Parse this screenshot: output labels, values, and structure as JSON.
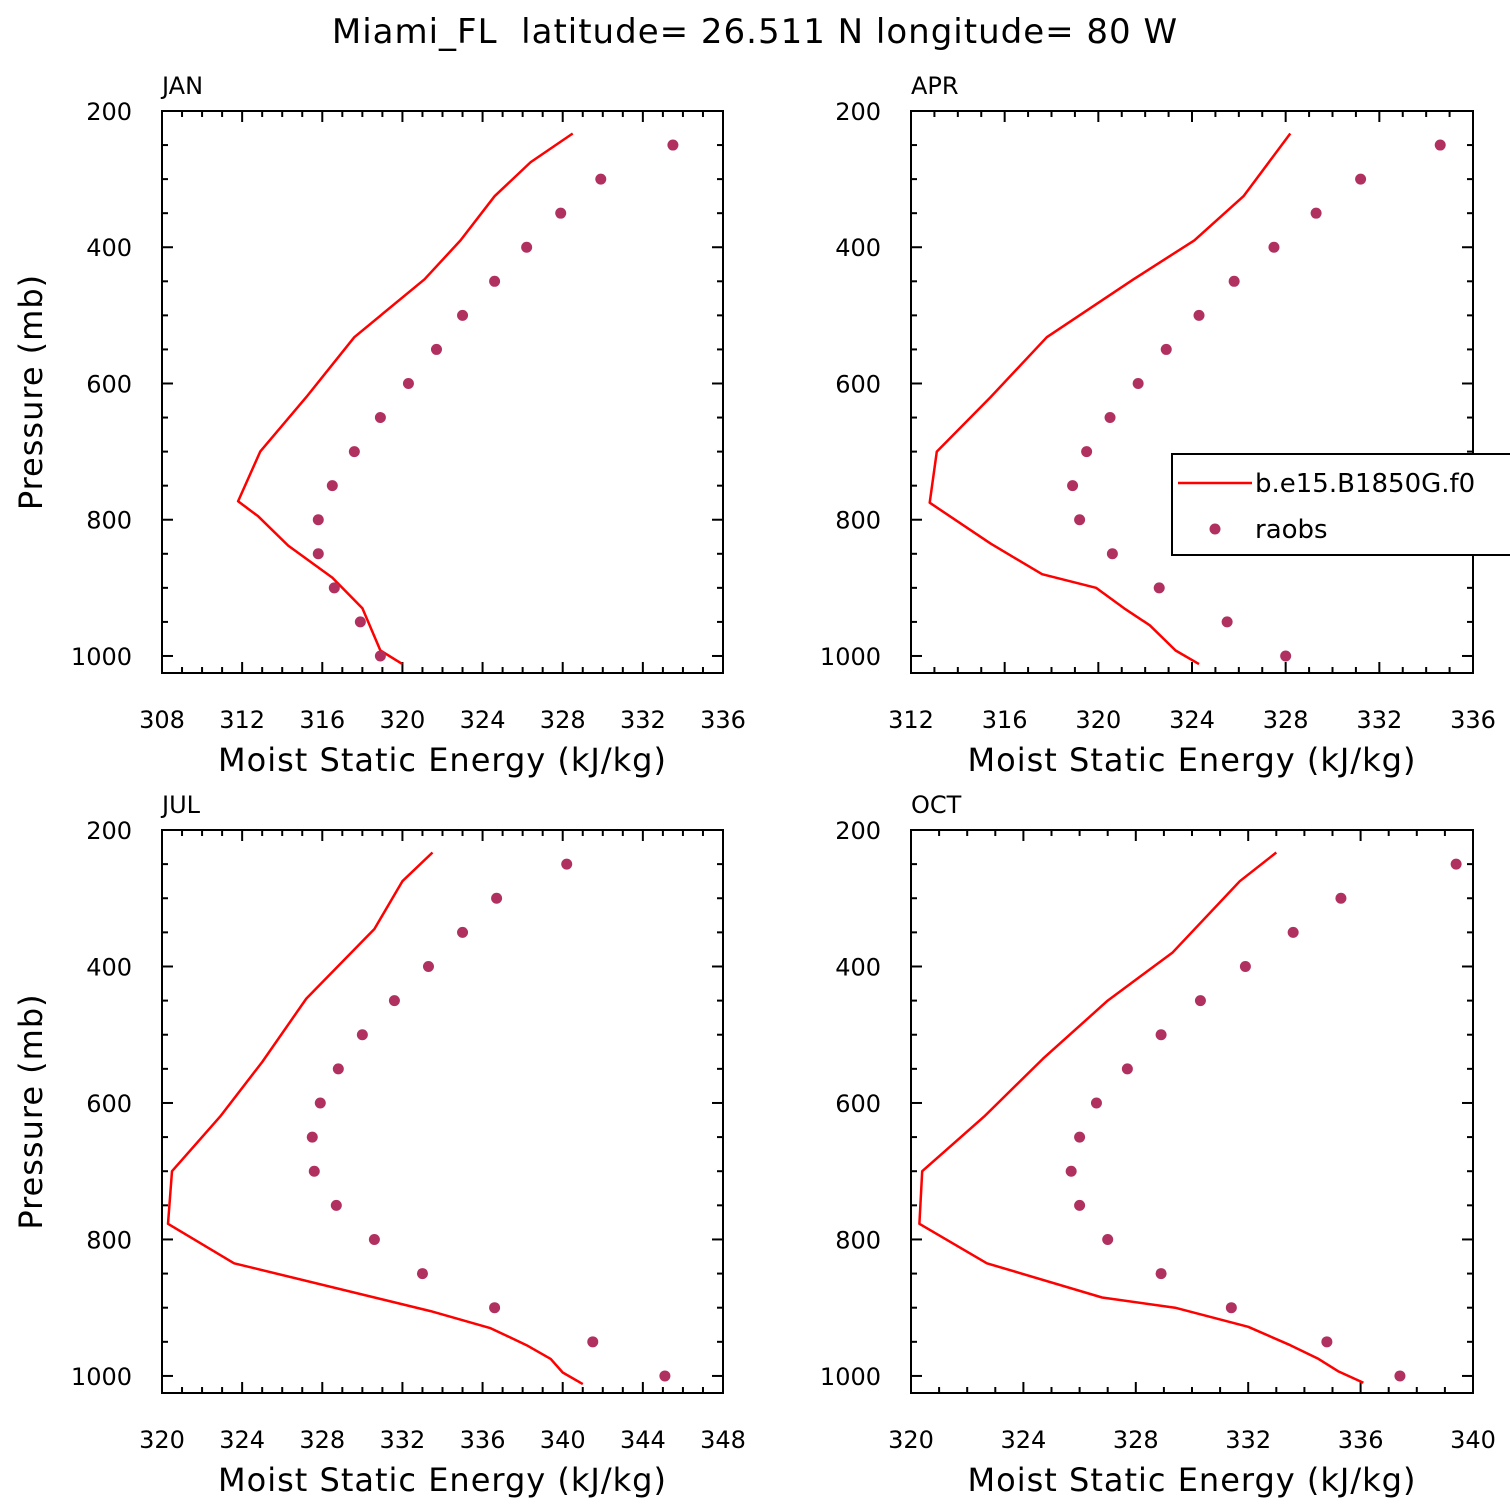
{
  "title": "Miami_FL  latitude= 26.511 N longitude= 80 W",
  "colors": {
    "model": "#ff0000",
    "raobs": "#b03060"
  },
  "legend": {
    "model_label": "b.e15.B1850G.f0",
    "raobs_label": "raobs",
    "panel": 1,
    "placement": "right"
  },
  "chart_data": [
    {
      "type": "line",
      "month_label": "JAN",
      "xlabel": "Moist Static Energy (kJ/kg)",
      "ylabel": "Pressure (mb)",
      "xlim": [
        308,
        336
      ],
      "xticks": [
        "308",
        "312",
        "316",
        "320",
        "324",
        "328",
        "332",
        "336"
      ],
      "ylim": [
        1025,
        200
      ],
      "yticks": [
        "200",
        "400",
        "600",
        "800",
        "1000"
      ],
      "model": {
        "x": [
          320.0,
          318.9,
          318.0,
          316.5,
          314.3,
          312.8,
          311.8,
          312.9,
          315.2,
          317.6,
          321.1,
          322.9,
          324.6,
          326.4,
          328.5
        ],
        "y": [
          1012,
          992,
          930,
          885,
          838,
          795,
          773,
          700,
          620,
          532,
          447,
          390,
          325,
          275,
          233
        ]
      },
      "raobs": {
        "x": [
          318.9,
          317.9,
          316.6,
          315.8,
          315.8,
          316.5,
          317.6,
          318.9,
          320.3,
          321.7,
          323.0,
          324.6,
          326.2,
          327.9,
          329.9,
          333.5
        ],
        "y": [
          1000,
          950,
          900,
          850,
          800,
          750,
          700,
          650,
          600,
          550,
          500,
          450,
          400,
          350,
          300,
          250
        ]
      }
    },
    {
      "type": "line",
      "month_label": "APR",
      "xlabel": "Moist Static Energy (kJ/kg)",
      "ylabel": "",
      "xlim": [
        312,
        336
      ],
      "xticks": [
        "312",
        "316",
        "320",
        "324",
        "328",
        "332",
        "336"
      ],
      "ylim": [
        1025,
        200
      ],
      "yticks": [
        "200",
        "400",
        "600",
        "800",
        "1000"
      ],
      "model": {
        "x": [
          324.3,
          323.3,
          322.2,
          321.1,
          319.9,
          317.6,
          315.4,
          312.8,
          313.1,
          315.4,
          317.8,
          321.5,
          324.1,
          326.2,
          328.2
        ],
        "y": [
          1012,
          992,
          955,
          930,
          900,
          880,
          835,
          775,
          700,
          620,
          532,
          447,
          390,
          325,
          233
        ]
      },
      "raobs": {
        "x": [
          328.0,
          325.5,
          322.6,
          320.6,
          319.2,
          318.9,
          319.5,
          320.5,
          321.7,
          322.9,
          324.3,
          325.8,
          327.5,
          329.3,
          331.2,
          334.6
        ],
        "y": [
          1000,
          950,
          900,
          850,
          800,
          750,
          700,
          650,
          600,
          550,
          500,
          450,
          400,
          350,
          300,
          250
        ]
      }
    },
    {
      "type": "line",
      "month_label": "JUL",
      "xlabel": "Moist Static Energy (kJ/kg)",
      "ylabel": "Pressure (mb)",
      "xlim": [
        320,
        348
      ],
      "xticks": [
        "320",
        "324",
        "328",
        "332",
        "336",
        "340",
        "344",
        "348"
      ],
      "ylim": [
        1025,
        200
      ],
      "yticks": [
        "200",
        "400",
        "600",
        "800",
        "1000"
      ],
      "model": {
        "x": [
          341.0,
          340.0,
          339.4,
          338.2,
          336.4,
          333.4,
          323.6,
          320.3,
          320.5,
          322.9,
          325.0,
          327.2,
          330.6,
          332.0,
          333.5
        ],
        "y": [
          1012,
          995,
          975,
          955,
          930,
          905,
          835,
          777,
          700,
          620,
          540,
          447,
          345,
          275,
          233
        ]
      },
      "raobs": {
        "x": [
          345.1,
          341.5,
          336.6,
          333.0,
          330.6,
          328.7,
          327.6,
          327.5,
          327.9,
          328.8,
          330.0,
          331.6,
          333.3,
          335.0,
          336.7,
          340.2
        ],
        "y": [
          1000,
          950,
          900,
          850,
          800,
          750,
          700,
          650,
          600,
          550,
          500,
          450,
          400,
          350,
          300,
          250
        ]
      }
    },
    {
      "type": "line",
      "month_label": "OCT",
      "xlabel": "Moist Static Energy (kJ/kg)",
      "ylabel": "",
      "xlim": [
        320,
        340
      ],
      "xticks": [
        "320",
        "324",
        "328",
        "332",
        "336",
        "340"
      ],
      "ylim": [
        1025,
        200
      ],
      "yticks": [
        "200",
        "400",
        "600",
        "800",
        "1000"
      ],
      "model": {
        "x": [
          336.1,
          335.2,
          334.5,
          333.5,
          332.0,
          329.4,
          326.8,
          322.7,
          320.3,
          320.4,
          322.6,
          324.7,
          327.0,
          329.3,
          331.7,
          333.0
        ],
        "y": [
          1010,
          993,
          975,
          955,
          928,
          900,
          885,
          835,
          777,
          700,
          620,
          535,
          450,
          380,
          275,
          233
        ]
      },
      "raobs": {
        "x": [
          337.4,
          334.8,
          331.4,
          328.9,
          327.0,
          326.0,
          325.7,
          326.0,
          326.6,
          327.7,
          328.9,
          330.3,
          331.9,
          333.6,
          335.3,
          339.4
        ],
        "y": [
          1000,
          950,
          900,
          850,
          800,
          750,
          700,
          650,
          600,
          550,
          500,
          450,
          400,
          350,
          300,
          250
        ]
      }
    }
  ]
}
